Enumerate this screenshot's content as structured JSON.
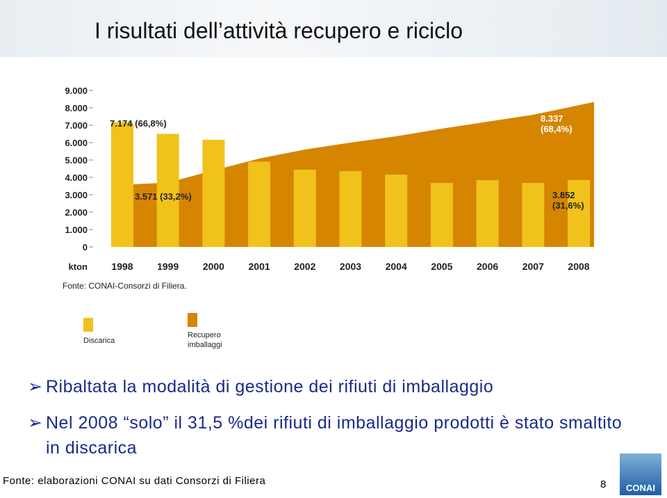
{
  "title": "I risultati dell’attività recupero e riciclo",
  "chart_data": {
    "type": "bar-area",
    "categories": [
      "1998",
      "1999",
      "2000",
      "2001",
      "2002",
      "2003",
      "2004",
      "2005",
      "2006",
      "2007",
      "2008"
    ],
    "y_unit": "kton",
    "source": "Fonte: CONAI-Consorzi di Filiera.",
    "ylim": [
      0,
      9000
    ],
    "yticks": [
      0,
      {
        "value": 1000,
        "label": "1.000"
      },
      {
        "value": 2000,
        "label": "2.000"
      },
      {
        "value": 3000,
        "label": "3.000"
      },
      {
        "value": 4000,
        "label": "4.000"
      },
      {
        "value": 5000,
        "label": "5.000"
      },
      {
        "value": 6000,
        "label": "6.000"
      },
      {
        "value": 7000,
        "label": "7.000"
      },
      {
        "value": 8000,
        "label": "8.000"
      },
      {
        "value": 9000,
        "label": "9.000"
      }
    ],
    "series": [
      {
        "name": "Discarica",
        "color": "#f1c21b",
        "kind": "bar",
        "values": [
          7174,
          6500,
          6160,
          4900,
          4440,
          4360,
          4160,
          3680,
          3840,
          3680,
          3852
        ],
        "value_labels": [
          "7.174 (66,8%)",
          null,
          null,
          null,
          null,
          null,
          null,
          null,
          null,
          null,
          "3.852 (31,6%)"
        ]
      },
      {
        "name": "Recupero imballaggi",
        "color": "#d68500",
        "kind": "area",
        "values": [
          3571,
          3700,
          4400,
          5080,
          5600,
          6000,
          6360,
          6800,
          7200,
          7600,
          8337
        ],
        "value_labels": [
          "3.571 (33,2%)",
          null,
          null,
          null,
          null,
          null,
          null,
          null,
          null,
          null,
          "8.337 (68,4%)"
        ]
      }
    ]
  },
  "bullets": [
    "Ribaltata la modalità di gestione dei rifiuti di imballaggio",
    "Nel 2008  “solo” il 31,5 %dei rifiuti di imballaggio prodotti è stato smaltito in discarica"
  ],
  "footer": {
    "source": "Fonte: elaborazioni CONAI su dati Consorzi di Filiera",
    "page": "8",
    "logo": "CONAI"
  }
}
